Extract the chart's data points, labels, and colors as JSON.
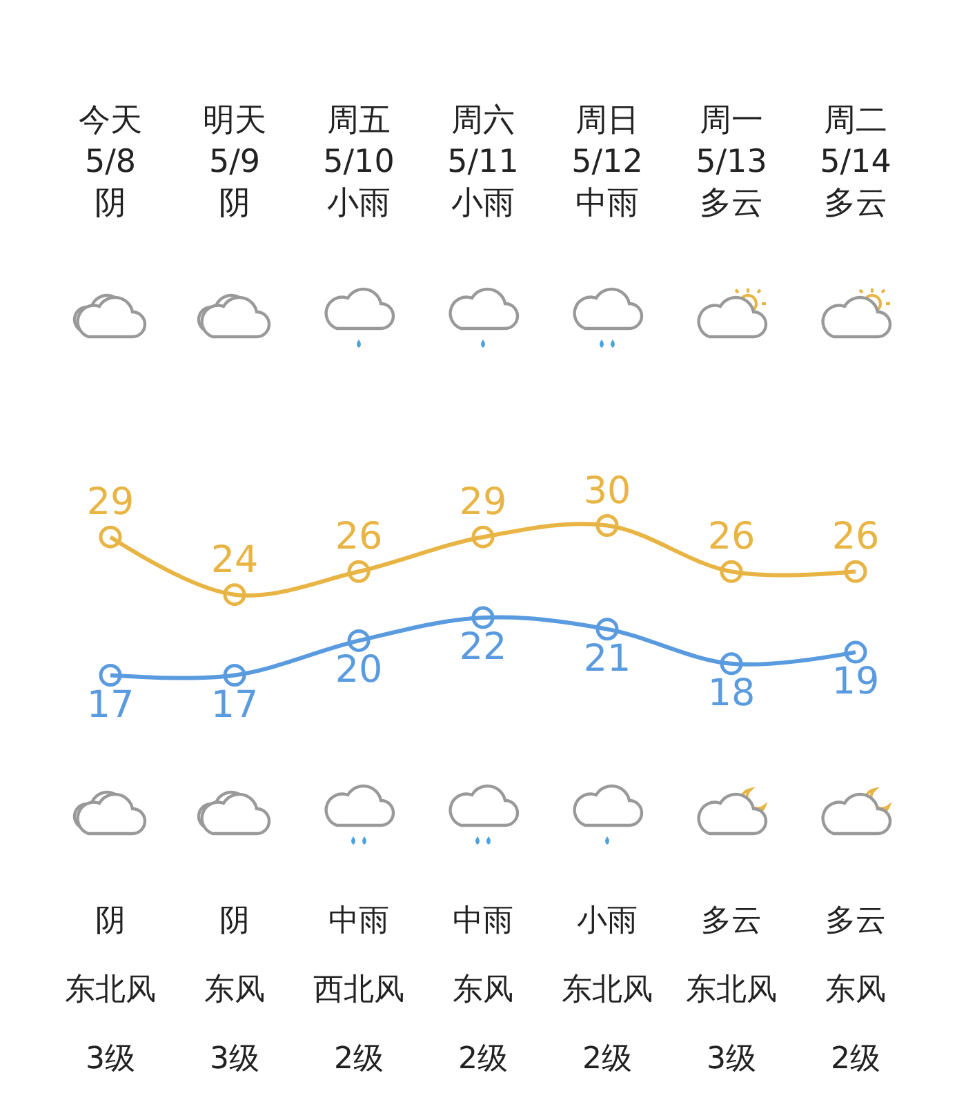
{
  "chart_data": {
    "type": "line",
    "categories": [
      "今天\n5/8\n阴",
      "明天\n5/9\n阴",
      "周五\n5/10\n小雨",
      "周六\n5/11\n小雨",
      "周日\n5/12\n中雨",
      "周一\n5/13\n多云",
      "周二\n5/14\n多云"
    ],
    "series": [
      {
        "color": "#e8b443",
        "values": [
          29,
          24,
          26,
          29,
          30,
          26,
          26
        ]
      },
      {
        "color": "#5a9be0",
        "values": [
          17,
          17,
          20,
          22,
          21,
          18,
          19
        ]
      }
    ],
    "annotations": [
      "阴",
      "阴",
      "中雨",
      "中雨",
      "小雨",
      "多云",
      "多云",
      "东北风",
      "东风",
      "西北风",
      "东风",
      "东北风",
      "东北风",
      "东风",
      "3级",
      "3级",
      "2级",
      "2级",
      "2级",
      "3级",
      "2级"
    ],
    "data_labels": true,
    "marker": "circle",
    "line_style": "solid"
  }
}
